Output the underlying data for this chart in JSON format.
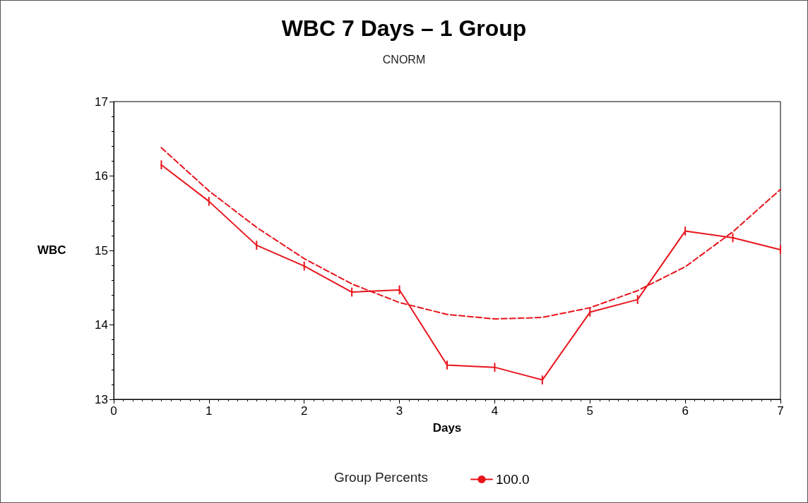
{
  "chart_data": {
    "type": "line",
    "title": "WBC 7 Days – 1 Group",
    "subtitle": "CNORM",
    "xlabel": "Days",
    "ylabel": "WBC",
    "legend_title": "Group Percents",
    "xlim": [
      0,
      7
    ],
    "xticks": [
      0,
      1,
      2,
      3,
      4,
      5,
      6,
      7
    ],
    "ylim": [
      13,
      17
    ],
    "yticks": [
      13,
      14,
      15,
      16,
      17
    ],
    "grid": false,
    "legend": "bottom",
    "marker": "none",
    "series": [
      {
        "name": "100.0",
        "color": "#e8141c",
        "line_style": "solid",
        "x": [
          0.5,
          1,
          1.5,
          2,
          2.5,
          3,
          3.5,
          4,
          4.5,
          5,
          5.5,
          6,
          6.5,
          7
        ],
        "values": [
          16.15,
          15.66,
          15.07,
          14.79,
          14.44,
          14.47,
          13.46,
          13.43,
          13.26,
          14.17,
          14.34,
          15.26,
          15.17,
          15.01
        ],
        "errors": [
          0.06,
          0.06,
          0.06,
          0.06,
          0.06,
          0.06,
          0.06,
          0.06,
          0.06,
          0.06,
          0.06,
          0.06,
          0.06,
          0.06
        ]
      },
      {
        "color": "#e8141c",
        "line_style": "dashed",
        "x": [
          0.5,
          1,
          1.5,
          2,
          2.5,
          3,
          3.5,
          4,
          4.5,
          5,
          5.5,
          6,
          6.5,
          7
        ],
        "values": [
          16.38,
          15.8,
          15.31,
          14.89,
          14.55,
          14.3,
          14.14,
          14.08,
          14.1,
          14.23,
          14.46,
          14.78,
          15.25,
          15.82
        ]
      }
    ]
  }
}
